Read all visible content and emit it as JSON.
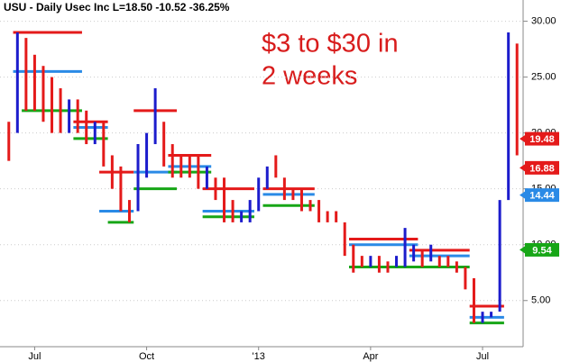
{
  "chart_data": {
    "type": "range_bar",
    "title": "USU - Daily  Usec Inc  L=18.50  -10.52  -36.25%",
    "annotation": [
      "$3 to $30 in",
      "2 weeks"
    ],
    "categories": [
      null,
      null,
      null,
      "Jul",
      null,
      null,
      null,
      null,
      null,
      null,
      null,
      null,
      null,
      null,
      null,
      null,
      "Oct",
      null,
      null,
      null,
      null,
      null,
      null,
      null,
      null,
      null,
      null,
      null,
      null,
      "'13",
      null,
      null,
      null,
      null,
      null,
      null,
      null,
      null,
      null,
      null,
      null,
      null,
      "Apr",
      null,
      null,
      null,
      null,
      null,
      null,
      null,
      null,
      null,
      null,
      null,
      null,
      "Jul",
      null,
      null,
      null,
      null
    ],
    "high": [
      21,
      29,
      28.5,
      27,
      26,
      25,
      24,
      23,
      23,
      22,
      21,
      21,
      18,
      17,
      14,
      19,
      20,
      24,
      21,
      19,
      18,
      18,
      18,
      17,
      16,
      16,
      14,
      13,
      14,
      16,
      17,
      18,
      16,
      15,
      15,
      14,
      14,
      13,
      13,
      12,
      10,
      9,
      9,
      9,
      8.5,
      9,
      11.5,
      10,
      9.5,
      10,
      9,
      9,
      8.5,
      8,
      7,
      4,
      4,
      14,
      29,
      28
    ],
    "low": [
      17.5,
      20,
      22,
      22,
      21,
      20,
      20,
      20,
      20,
      19,
      19,
      17,
      15,
      13,
      12,
      13,
      16,
      19,
      17,
      16,
      16,
      16,
      15,
      15,
      14,
      12,
      12,
      12,
      12,
      13,
      15,
      16,
      14,
      14,
      13,
      13,
      12,
      12,
      12,
      9,
      7.5,
      8,
      8,
      7.5,
      7.5,
      8,
      8,
      8.5,
      8,
      8.5,
      8,
      8,
      7.5,
      6,
      3,
      3,
      3.5,
      4,
      14,
      18
    ],
    "up": [
      false,
      true,
      false,
      false,
      false,
      false,
      false,
      true,
      false,
      false,
      true,
      false,
      false,
      false,
      false,
      true,
      true,
      true,
      false,
      false,
      false,
      false,
      false,
      true,
      false,
      false,
      false,
      true,
      true,
      true,
      true,
      false,
      false,
      false,
      false,
      false,
      false,
      false,
      false,
      false,
      false,
      false,
      true,
      false,
      false,
      true,
      true,
      true,
      false,
      true,
      false,
      false,
      false,
      false,
      false,
      true,
      true,
      true,
      true,
      false
    ],
    "up_color": "#1c1ccc",
    "down_color": "#e41a1a",
    "levels": [
      {
        "value": 29,
        "from": 1,
        "to": 8,
        "color": "#e41a1a"
      },
      {
        "value": 25.5,
        "from": 1,
        "to": 8,
        "color": "#2a8ae6"
      },
      {
        "value": 22,
        "from": 2,
        "to": 8,
        "color": "#17a617"
      },
      {
        "value": 21,
        "from": 8,
        "to": 11,
        "color": "#e41a1a"
      },
      {
        "value": 20.5,
        "from": 8,
        "to": 11,
        "color": "#2a8ae6"
      },
      {
        "value": 19.5,
        "from": 8,
        "to": 11,
        "color": "#17a617"
      },
      {
        "value": 16.5,
        "from": 11,
        "to": 14,
        "color": "#e41a1a"
      },
      {
        "value": 13,
        "from": 11,
        "to": 14,
        "color": "#2a8ae6"
      },
      {
        "value": 12,
        "from": 12,
        "to": 14,
        "color": "#17a617"
      },
      {
        "value": 22,
        "from": 15,
        "to": 19,
        "color": "#e41a1a"
      },
      {
        "value": 16.5,
        "from": 15,
        "to": 19,
        "color": "#2a8ae6"
      },
      {
        "value": 15,
        "from": 15,
        "to": 19,
        "color": "#17a617"
      },
      {
        "value": 18,
        "from": 19,
        "to": 23,
        "color": "#e41a1a"
      },
      {
        "value": 17,
        "from": 19,
        "to": 23,
        "color": "#2a8ae6"
      },
      {
        "value": 16.5,
        "from": 19,
        "to": 23,
        "color": "#17a617"
      },
      {
        "value": 15,
        "from": 23,
        "to": 28,
        "color": "#e41a1a"
      },
      {
        "value": 13,
        "from": 23,
        "to": 28,
        "color": "#2a8ae6"
      },
      {
        "value": 12.5,
        "from": 23,
        "to": 28,
        "color": "#17a617"
      },
      {
        "value": 15,
        "from": 30,
        "to": 35,
        "color": "#e41a1a"
      },
      {
        "value": 14.5,
        "from": 30,
        "to": 35,
        "color": "#2a8ae6"
      },
      {
        "value": 13.5,
        "from": 30,
        "to": 35,
        "color": "#17a617"
      },
      {
        "value": 10.5,
        "from": 40,
        "to": 47,
        "color": "#e41a1a"
      },
      {
        "value": 10,
        "from": 40,
        "to": 47,
        "color": "#2a8ae6"
      },
      {
        "value": 8,
        "from": 40,
        "to": 47,
        "color": "#17a617"
      },
      {
        "value": 9.5,
        "from": 47,
        "to": 53,
        "color": "#e41a1a"
      },
      {
        "value": 9,
        "from": 47,
        "to": 53,
        "color": "#2a8ae6"
      },
      {
        "value": 8,
        "from": 47,
        "to": 53,
        "color": "#17a617"
      },
      {
        "value": 4.5,
        "from": 54,
        "to": 57,
        "color": "#e41a1a"
      },
      {
        "value": 3.5,
        "from": 54,
        "to": 57,
        "color": "#2a8ae6"
      },
      {
        "value": 3,
        "from": 54,
        "to": 57,
        "color": "#17a617"
      }
    ],
    "price_markers": [
      {
        "value": 19.48,
        "color": "#e41a1a"
      },
      {
        "value": 16.88,
        "color": "#e41a1a"
      },
      {
        "value": 14.44,
        "color": "#2a8ae6"
      },
      {
        "value": 9.54,
        "color": "#17a617"
      }
    ],
    "ylim": [
      -0.5,
      31.9
    ],
    "yticks": [
      {
        "value": 5,
        "label": "5.00"
      },
      {
        "value": 10,
        "label": "10.00"
      },
      {
        "value": 15,
        "label": "15.00"
      },
      {
        "value": 20,
        "label": "20.00"
      },
      {
        "value": 25,
        "label": "25.00"
      },
      {
        "value": 30,
        "label": "30.00"
      }
    ],
    "grid": true
  }
}
